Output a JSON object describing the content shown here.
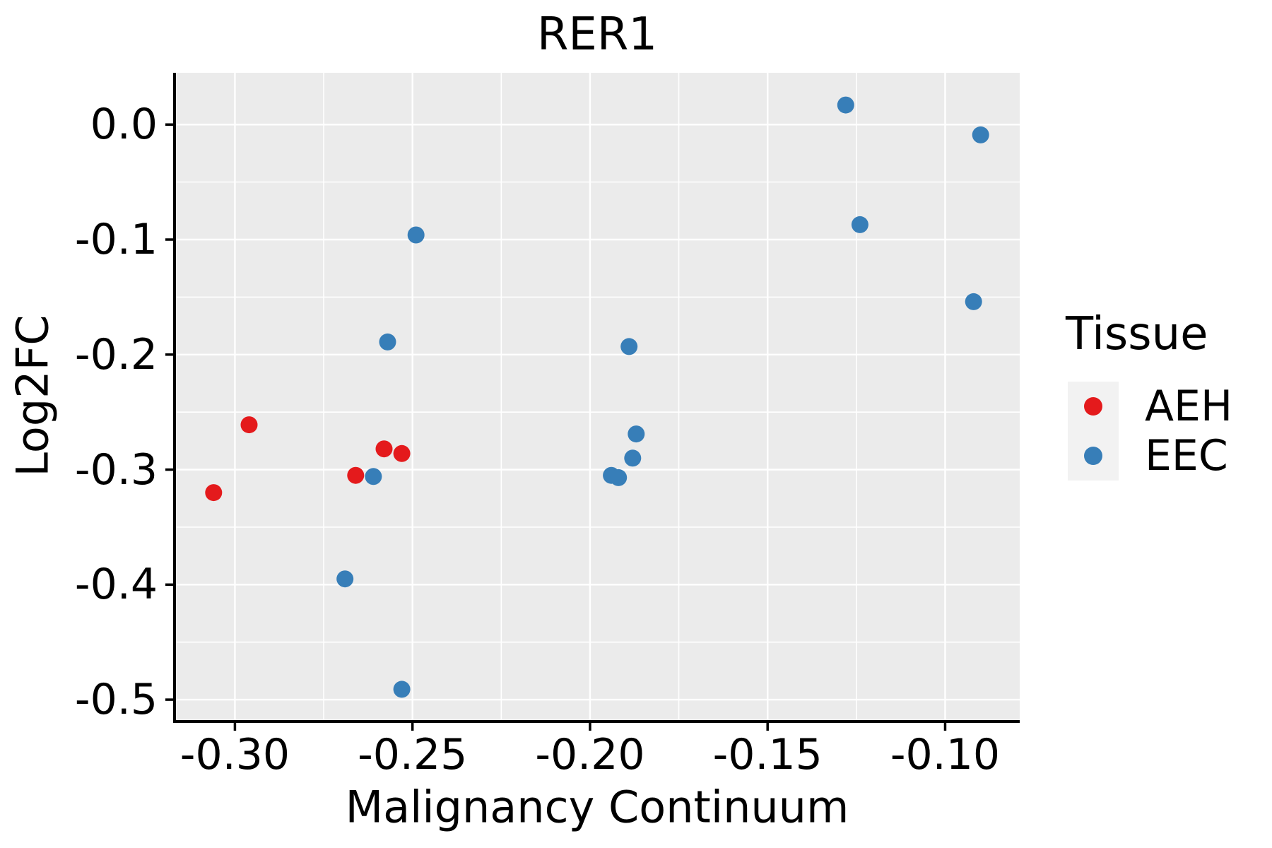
{
  "title": "RER1",
  "legend": {
    "title": "Tissue",
    "items": [
      {
        "label": "AEH",
        "color": "#E41A1C"
      },
      {
        "label": "EEC",
        "color": "#377EB8"
      }
    ]
  },
  "colors": {
    "panel_background": "#EBEBEB",
    "grid": "#FFFFFF",
    "axis": "#000000",
    "text": "#000000",
    "legend_key_background": "#F2F2F2",
    "aeh_red": "#E41A1C",
    "eec_blue": "#377EB8"
  },
  "axes": {
    "x": {
      "label": "Malignancy Continuum",
      "tick_labels": [
        "-0.30",
        "-0.25",
        "-0.20",
        "-0.15",
        "-0.10"
      ],
      "tick_values": [
        -0.3,
        -0.25,
        -0.2,
        -0.15,
        -0.1
      ],
      "minor_tick_values": [
        -0.275,
        -0.225,
        -0.175,
        -0.125
      ]
    },
    "y": {
      "label": "Log2FC",
      "tick_labels": [
        "0.0",
        "-0.1",
        "-0.2",
        "-0.3",
        "-0.4",
        "-0.5"
      ],
      "tick_values": [
        0.0,
        -0.1,
        -0.2,
        -0.3,
        -0.4,
        -0.5
      ],
      "minor_tick_values": [
        -0.05,
        -0.15,
        -0.25,
        -0.35,
        -0.45
      ]
    }
  },
  "chart_data": {
    "type": "scatter",
    "title": "RER1",
    "xlabel": "Malignancy Continuum",
    "ylabel": "Log2FC",
    "xlim": [
      -0.317,
      -0.079
    ],
    "ylim": [
      -0.519,
      0.045
    ],
    "grid": true,
    "legend_position": "right",
    "legend_title": "Tissue",
    "series": [
      {
        "name": "AEH",
        "color": "#E41A1C",
        "points": [
          [
            -0.306,
            -0.32
          ],
          [
            -0.296,
            -0.261
          ],
          [
            -0.266,
            -0.305
          ],
          [
            -0.258,
            -0.282
          ],
          [
            -0.253,
            -0.286
          ]
        ]
      },
      {
        "name": "EEC",
        "color": "#377EB8",
        "points": [
          [
            -0.269,
            -0.395
          ],
          [
            -0.261,
            -0.306
          ],
          [
            -0.257,
            -0.189
          ],
          [
            -0.253,
            -0.491
          ],
          [
            -0.249,
            -0.096
          ],
          [
            -0.194,
            -0.305
          ],
          [
            -0.192,
            -0.307
          ],
          [
            -0.189,
            -0.193
          ],
          [
            -0.188,
            -0.29
          ],
          [
            -0.187,
            -0.269
          ],
          [
            -0.128,
            0.017
          ],
          [
            -0.124,
            -0.087
          ],
          [
            -0.092,
            -0.154
          ],
          [
            -0.09,
            -0.009
          ]
        ]
      }
    ]
  }
}
